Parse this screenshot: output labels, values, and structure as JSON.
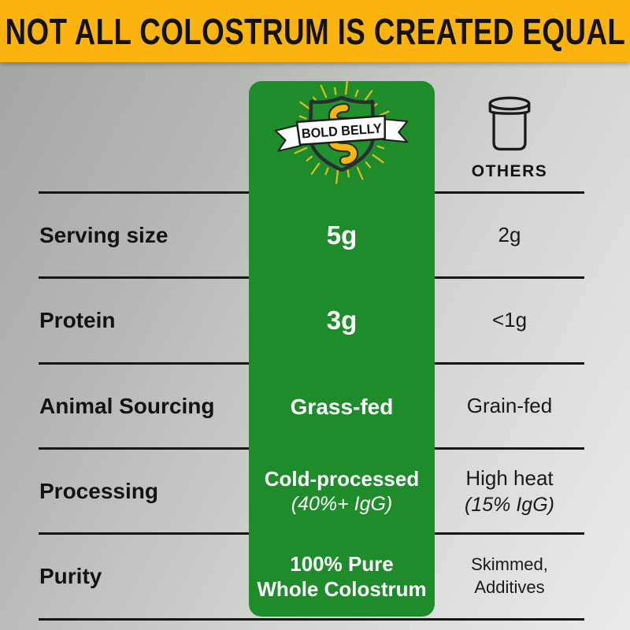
{
  "banner": {
    "title": "NOT ALL COLOSTRUM IS CREATED EQUAL"
  },
  "brand": {
    "name": "BOLD BELLY"
  },
  "others": {
    "label": "OTHERS",
    "icon": "jar-icon"
  },
  "colors": {
    "banner_bg": "#FBB30D",
    "brand_green": "#1F8C2C",
    "gut_yellow": "#F6B60D",
    "ray_yellow": "#DCBE1E",
    "line_black": "#161616",
    "text_black": "#141414",
    "brand_text": "#FFFFFF"
  },
  "table": {
    "rows": [
      {
        "label": "Serving size",
        "brand_line1": "5g",
        "brand_line2": "",
        "others_line1": "2g",
        "others_line2": ""
      },
      {
        "label": "Protein",
        "brand_line1": "3g",
        "brand_line2": "",
        "others_line1": "<1g",
        "others_line2": ""
      },
      {
        "label": "Animal Sourcing",
        "brand_line1": "Grass-fed",
        "brand_line2": "",
        "others_line1": "Grain-fed",
        "others_line2": ""
      },
      {
        "label": "Processing",
        "brand_line1": "Cold-processed",
        "brand_line2": "(40%+ IgG)",
        "others_line1": "High heat",
        "others_line2": "(15% IgG)"
      },
      {
        "label": "Purity",
        "brand_line1": "100% Pure",
        "brand_line2": "Whole Colostrum",
        "others_line1": "Skimmed,",
        "others_line2": "Additives"
      }
    ]
  }
}
